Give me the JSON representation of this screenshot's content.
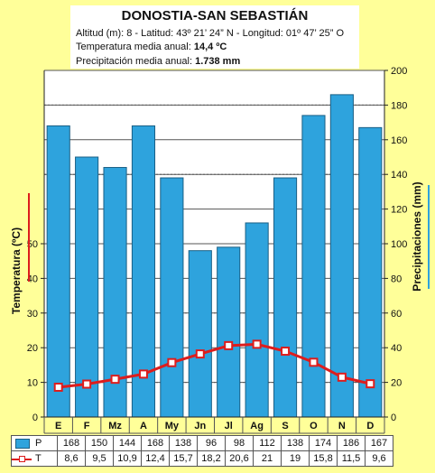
{
  "header": {
    "title": "DONOSTIA-SAN SEBASTIÁN",
    "coordinates": "Altitud (m): 8 - Latitud: 43º 21’ 24” N - Longitud: 01º 47’ 25” O",
    "temp_label": "Temperatura media anual: ",
    "temp_value": "14,4 ºC",
    "precip_label": "Precipitación media anual: ",
    "precip_value": "1.738 mm"
  },
  "chart_data": {
    "type": "bar",
    "categories": [
      "E",
      "F",
      "Mz",
      "A",
      "My",
      "Jn",
      "Jl",
      "Ag",
      "S",
      "O",
      "N",
      "D"
    ],
    "ylabel_left": "Temperatura (ºC)",
    "ylabel_right": "Precipitaciones (mm)",
    "ylim_left": [
      0,
      100
    ],
    "ylim_right": [
      0,
      200
    ],
    "yticks_left": [
      0,
      10,
      20,
      30,
      40,
      50
    ],
    "yticks_right": [
      0,
      20,
      40,
      60,
      80,
      100,
      120,
      140,
      160,
      180,
      200
    ],
    "series": [
      {
        "short": "P",
        "axis": "right",
        "kind": "bar",
        "color": "#2ea3dd",
        "values": [
          168,
          150,
          144,
          168,
          138,
          96,
          98,
          112,
          138,
          174,
          186,
          167
        ],
        "labels": [
          "168",
          "150",
          "144",
          "168",
          "138",
          "96",
          "98",
          "112",
          "138",
          "174",
          "186",
          "167"
        ]
      },
      {
        "short": "T",
        "axis": "left",
        "kind": "line",
        "color": "#dd1d1d",
        "values": [
          8.6,
          9.5,
          10.9,
          12.4,
          15.7,
          18.2,
          20.6,
          21,
          19,
          15.8,
          11.5,
          9.6
        ],
        "labels": [
          "8,6",
          "9,5",
          "10,9",
          "12,4",
          "15,7",
          "18,2",
          "20,6",
          "21",
          "19",
          "15,8",
          "11,5",
          "9,6"
        ]
      }
    ],
    "colors": {
      "background": "#ffff99",
      "plot_background": "#ffffff",
      "left_axis_accent": "#dd1d1d",
      "right_axis_accent": "#2ea3dd"
    }
  }
}
